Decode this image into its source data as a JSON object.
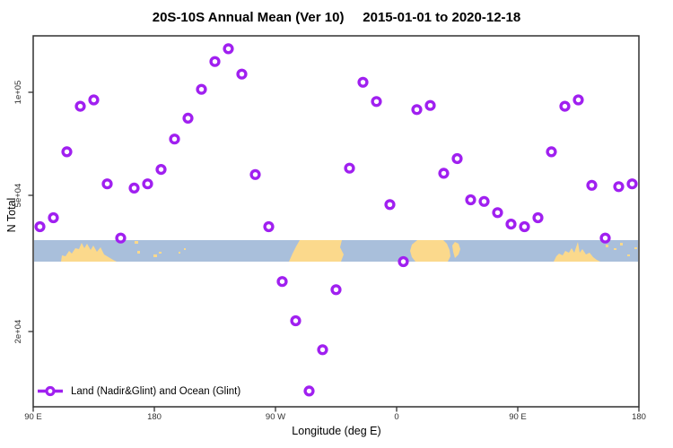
{
  "title": "20S-10S Annual Mean (Ver 10)     2015-01-01 to 2020-12-18",
  "chart_data": {
    "type": "scatter",
    "title": "20S-10S Annual Mean (Ver 10)   2015-01-01 to 2020-12-18",
    "xlabel": "Longitude (deg E)",
    "ylabel": "N Total",
    "x_encoding": "degrees of longitude eastward from 0, wrapping past 360 (axis runs 90E -> 180 -> 90W -> 0 -> 90E -> 180)",
    "x_range": [
      90,
      540
    ],
    "y_scale": "log10",
    "x_ticks": [
      {
        "pos": 90,
        "label": "90 E"
      },
      {
        "pos": 180,
        "label": "180"
      },
      {
        "pos": 270,
        "label": "90 W"
      },
      {
        "pos": 360,
        "label": "0"
      },
      {
        "pos": 450,
        "label": "90 E"
      },
      {
        "pos": 540,
        "label": "180"
      }
    ],
    "y_ticks": [
      {
        "value": 100000,
        "label": "1e+05"
      },
      {
        "value": 50000,
        "label": "5e+04"
      },
      {
        "value": 20000,
        "label": "2e+04"
      }
    ],
    "legend": {
      "label": "Land (Nadir&Glint) and Ocean (Glint)"
    },
    "colors": {
      "marker": "#A020F0",
      "ocean": "#A9BFDB",
      "land": "#FBD98C",
      "axis": "#303030"
    },
    "map_strip": {
      "description": "20S-10S land/ocean strip map",
      "value_top": 37000,
      "value_bottom": 32000
    },
    "series": [
      {
        "name": "Land (Nadir&Glint) and Ocean (Glint)",
        "points": [
          [
            95,
            40500
          ],
          [
            105,
            43000
          ],
          [
            115,
            67000
          ],
          [
            125,
            91000
          ],
          [
            135,
            95000
          ],
          [
            145,
            54000
          ],
          [
            155,
            37500
          ],
          [
            165,
            52500
          ],
          [
            175,
            54000
          ],
          [
            185,
            59500
          ],
          [
            195,
            73000
          ],
          [
            205,
            84000
          ],
          [
            215,
            102000
          ],
          [
            225,
            123000
          ],
          [
            235,
            134000
          ],
          [
            245,
            113000
          ],
          [
            255,
            57500
          ],
          [
            265,
            40500
          ],
          [
            275,
            28000
          ],
          [
            285,
            21500
          ],
          [
            295,
            13400
          ],
          [
            305,
            17700
          ],
          [
            315,
            26500
          ],
          [
            325,
            60000
          ],
          [
            335,
            107000
          ],
          [
            345,
            94000
          ],
          [
            355,
            47000
          ],
          [
            365,
            32000
          ],
          [
            375,
            89000
          ],
          [
            385,
            91500
          ],
          [
            395,
            58000
          ],
          [
            405,
            64000
          ],
          [
            415,
            48500
          ],
          [
            425,
            48000
          ],
          [
            435,
            44500
          ],
          [
            445,
            41200
          ],
          [
            455,
            40500
          ],
          [
            465,
            43000
          ],
          [
            475,
            67000
          ],
          [
            485,
            91000
          ],
          [
            495,
            95000
          ],
          [
            505,
            53500
          ],
          [
            515,
            37500
          ],
          [
            525,
            53000
          ],
          [
            535,
            54000
          ]
        ]
      }
    ]
  }
}
